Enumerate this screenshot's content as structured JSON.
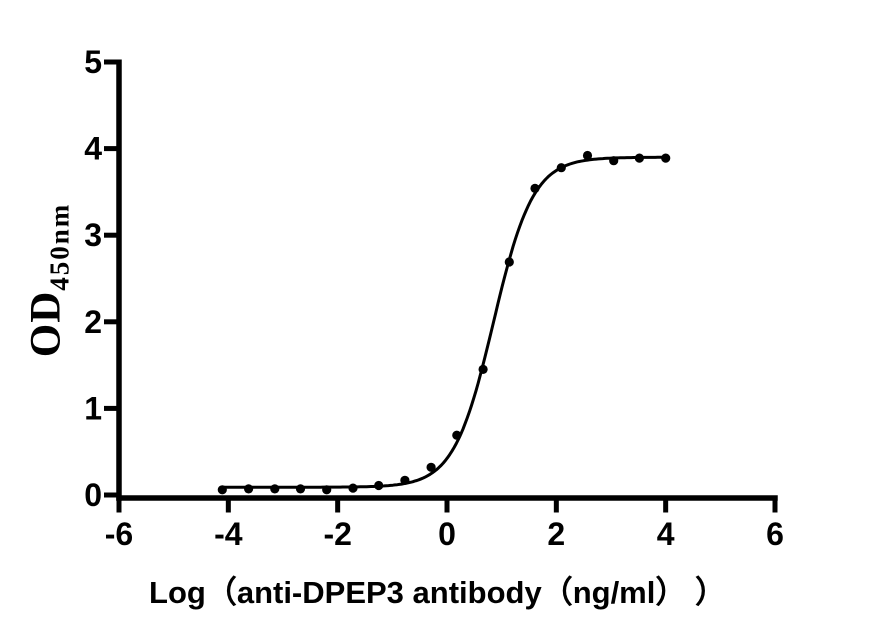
{
  "figure": {
    "background": "#ffffff",
    "axis_color": "#000000",
    "point_color": "#000000",
    "curve_color": "#000000"
  },
  "chart_data": {
    "type": "scatter",
    "xlabel": "Log（anti-DPEP3 antibody（ng/ml） ）",
    "ylabel_main": "OD",
    "ylabel_sub": "450nm",
    "xlim": [
      -6,
      6
    ],
    "ylim": [
      0,
      5
    ],
    "xticks": [
      -6,
      -4,
      -2,
      0,
      2,
      4,
      6
    ],
    "yticks": [
      0,
      1,
      2,
      3,
      4,
      5
    ],
    "grid": false,
    "legend_position": "none",
    "series": [
      {
        "marker": "circle",
        "color": "#000000",
        "points": [
          [
            -4.11,
            0.06
          ],
          [
            -3.63,
            0.07
          ],
          [
            -3.15,
            0.07
          ],
          [
            -2.68,
            0.07
          ],
          [
            -2.2,
            0.06
          ],
          [
            -1.72,
            0.08
          ],
          [
            -1.25,
            0.11
          ],
          [
            -0.77,
            0.17
          ],
          [
            -0.29,
            0.32
          ],
          [
            0.18,
            0.69
          ],
          [
            0.66,
            1.45
          ],
          [
            1.14,
            2.69
          ],
          [
            1.61,
            3.54
          ],
          [
            2.09,
            3.78
          ],
          [
            2.57,
            3.92
          ],
          [
            3.05,
            3.86
          ],
          [
            3.52,
            3.89
          ],
          [
            4.0,
            3.89
          ]
        ]
      }
    ],
    "fit_curve": {
      "model": "4PL-logistic",
      "bottom": 0.09,
      "top": 3.9,
      "log_ec50": 0.85,
      "hill_slope": 1.2,
      "x_start": -4.11,
      "x_end": 4.0,
      "color": "#000000"
    }
  }
}
